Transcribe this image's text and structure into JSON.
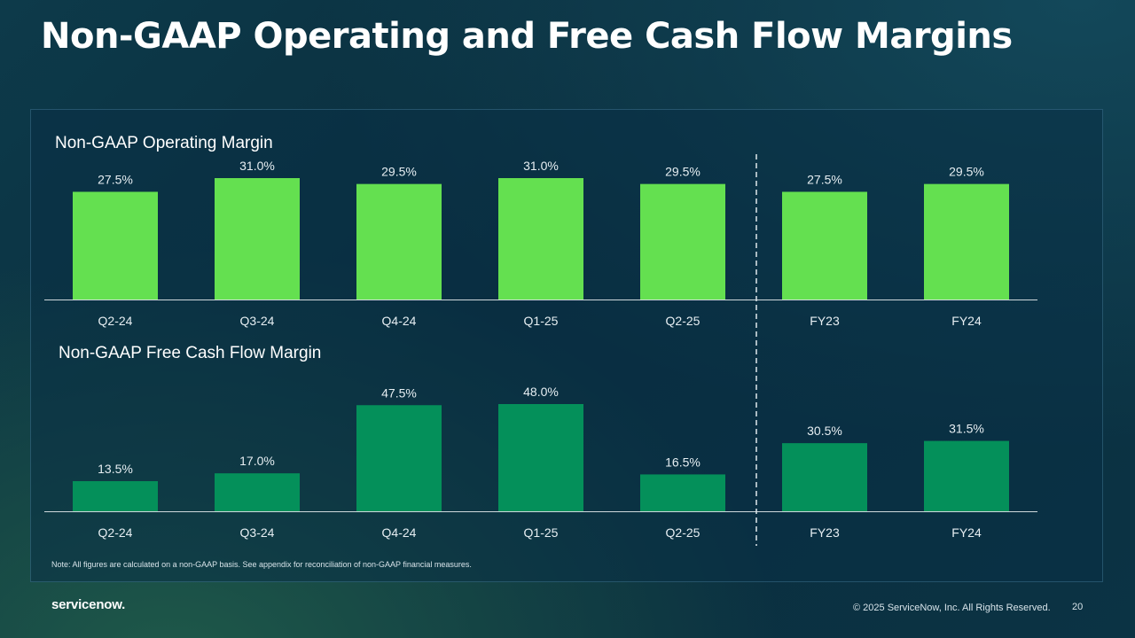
{
  "slide": {
    "title": "Non-GAAP Operating and Free Cash Flow Margins",
    "note": "Note: All figures are calculated on a non-GAAP basis. See appendix for reconciliation of non-GAAP financial measures.",
    "logo_text": "servicenow.",
    "copyright": "© 2025 ServiceNow, Inc. All Rights Reserved.",
    "page_number": "20"
  },
  "colors": {
    "operating_bar": "#64e050",
    "fcf_bar": "#04905a",
    "axis": "#cfd8dc",
    "divider": "#e0e8ec"
  },
  "chart_data": [
    {
      "type": "bar",
      "title": "Non-GAAP Operating Margin",
      "categories": [
        "Q2-24",
        "Q3-24",
        "Q4-24",
        "Q1-25",
        "Q2-25",
        "FY23",
        "FY24"
      ],
      "values": [
        27.5,
        31.0,
        29.5,
        31.0,
        29.5,
        27.5,
        29.5
      ],
      "labels": [
        "27.5%",
        "31.0%",
        "29.5%",
        "31.0%",
        "29.5%",
        "27.5%",
        "29.5%"
      ],
      "unit": "%",
      "xlabel": "",
      "ylabel": "",
      "ylim": [
        0,
        31.0
      ],
      "grid": false,
      "divider_after_index": 4
    },
    {
      "type": "bar",
      "title": "Non-GAAP Free Cash Flow Margin",
      "categories": [
        "Q2-24",
        "Q3-24",
        "Q4-24",
        "Q1-25",
        "Q2-25",
        "FY23",
        "FY24"
      ],
      "values": [
        13.5,
        17.0,
        47.5,
        48.0,
        16.5,
        30.5,
        31.5
      ],
      "labels": [
        "13.5%",
        "17.0%",
        "47.5%",
        "48.0%",
        "16.5%",
        "30.5%",
        "31.5%"
      ],
      "unit": "%",
      "xlabel": "",
      "ylabel": "",
      "ylim": [
        0,
        48.0
      ],
      "grid": false,
      "divider_after_index": 4
    }
  ]
}
